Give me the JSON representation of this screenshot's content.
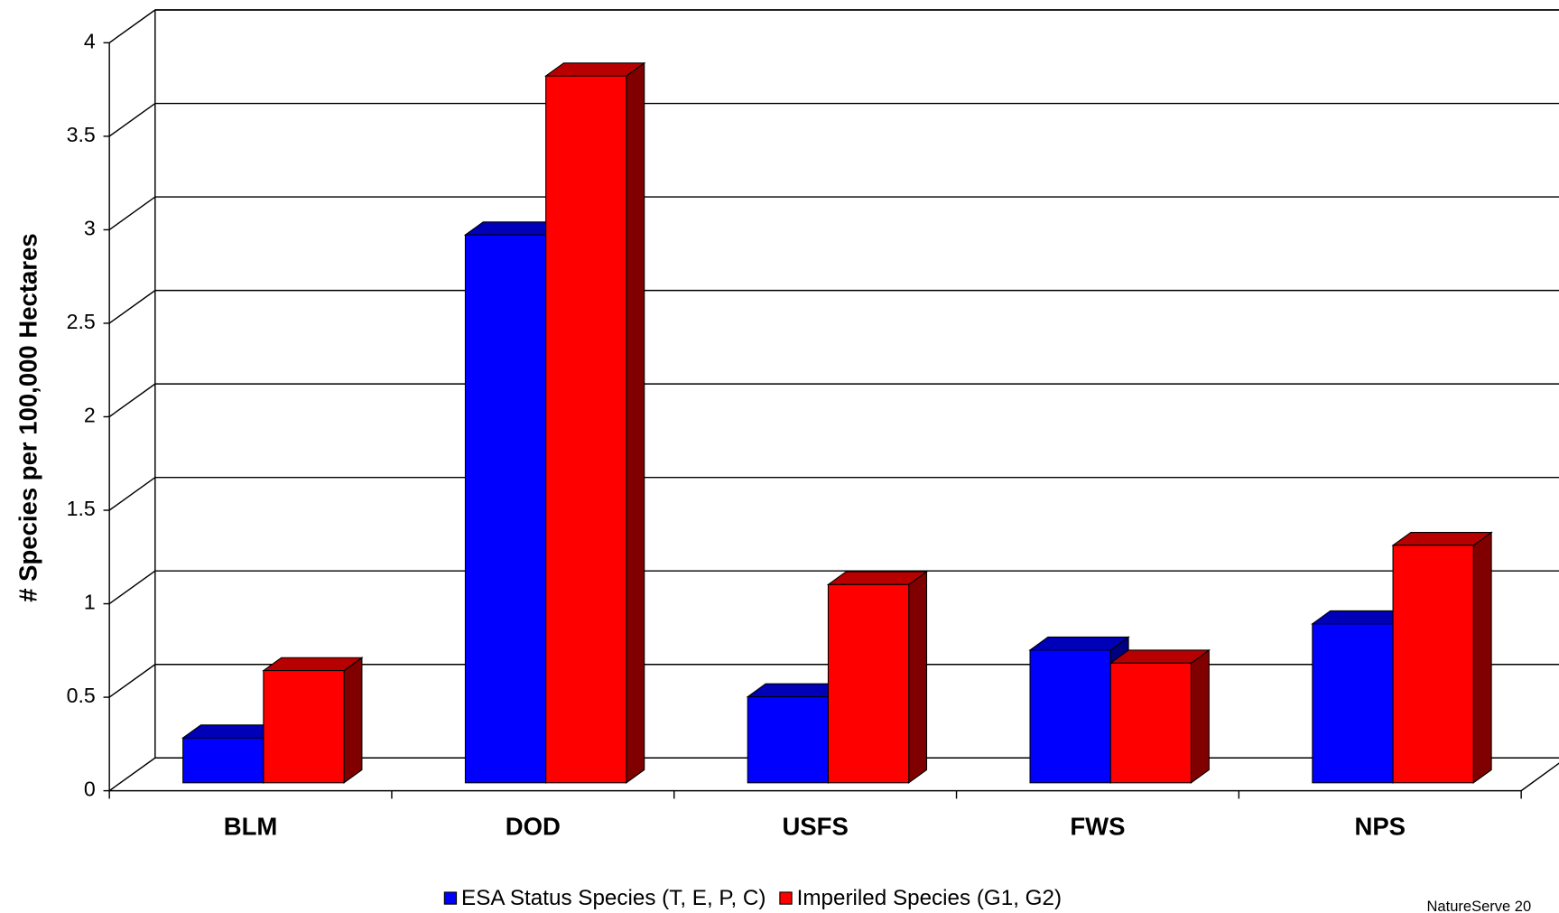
{
  "chart_data": {
    "type": "bar3d",
    "y_axis_label": "# Species per 100,000 Hectares",
    "categories": [
      "BLM",
      "DOD",
      "USFS",
      "FWS",
      "NPS"
    ],
    "series": [
      {
        "name": "ESA Status Species (T, E, P, C)",
        "color": "#0000ff",
        "values": [
          0.24,
          2.93,
          0.46,
          0.71,
          0.85
        ]
      },
      {
        "name": "Imperiled Species (G1, G2)",
        "color": "#ff0000",
        "values": [
          0.6,
          3.78,
          1.06,
          0.64,
          1.27
        ]
      }
    ],
    "ylim": [
      0,
      4
    ],
    "yticks": [
      0,
      0.5,
      1,
      1.5,
      2,
      2.5,
      3,
      3.5,
      4
    ],
    "grid": true,
    "legend": "bottom",
    "source": "NatureServe 20"
  }
}
